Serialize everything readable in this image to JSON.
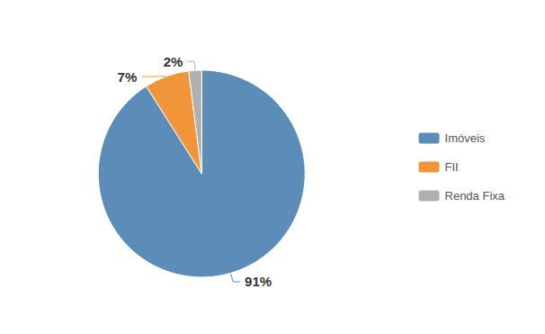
{
  "chart_data": {
    "type": "pie",
    "categories": [
      "Imóveis",
      "FII",
      "Renda Fixa"
    ],
    "values": [
      91,
      7,
      2
    ],
    "value_labels": [
      "91%",
      "7%",
      "2%"
    ],
    "colors": [
      "#5B8DB8",
      "#F0953A",
      "#B0B0B0"
    ],
    "data_labels": true,
    "legend": "right"
  }
}
